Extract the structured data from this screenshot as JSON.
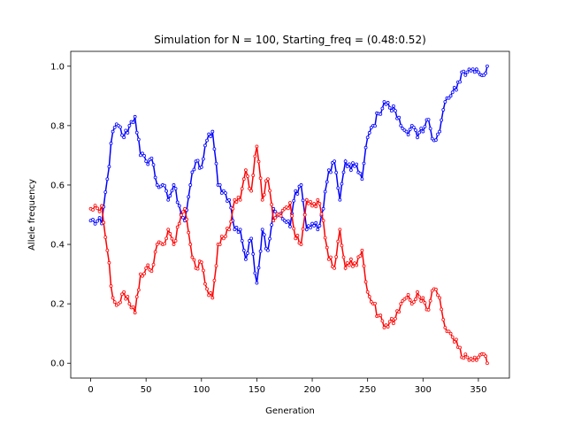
{
  "chart_data": {
    "type": "line",
    "title": "Simulation for N = 100, Starting_freq = (0.48:0.52)",
    "xlabel": "Generation",
    "ylabel": "Allele frequency",
    "xlim": [
      -18,
      378
    ],
    "ylim": [
      -0.05,
      1.05
    ],
    "x_ticks": [
      0,
      50,
      100,
      150,
      200,
      250,
      300,
      350
    ],
    "y_ticks": [
      0.0,
      0.2,
      0.4,
      0.6,
      0.8,
      1.0
    ],
    "grid": false,
    "legend": "none",
    "series": [
      {
        "color": "#0000ff",
        "x": [
          0,
          10,
          15,
          20,
          25,
          30,
          35,
          40,
          45,
          50,
          55,
          60,
          65,
          70,
          75,
          80,
          85,
          90,
          95,
          100,
          105,
          110,
          115,
          120,
          125,
          130,
          135,
          140,
          145,
          150,
          155,
          160,
          165,
          170,
          175,
          180,
          185,
          190,
          195,
          200,
          205,
          210,
          215,
          220,
          225,
          230,
          235,
          240,
          245,
          250,
          255,
          260,
          265,
          270,
          275,
          280,
          285,
          290,
          295,
          300,
          305,
          310,
          315,
          320,
          325,
          330,
          335,
          340,
          345,
          350,
          355,
          358
        ],
        "values": [
          0.48,
          0.47,
          0.62,
          0.78,
          0.8,
          0.76,
          0.8,
          0.83,
          0.7,
          0.68,
          0.69,
          0.6,
          0.6,
          0.55,
          0.6,
          0.53,
          0.48,
          0.6,
          0.68,
          0.66,
          0.75,
          0.78,
          0.6,
          0.58,
          0.55,
          0.45,
          0.45,
          0.35,
          0.42,
          0.27,
          0.45,
          0.38,
          0.52,
          0.5,
          0.48,
          0.46,
          0.58,
          0.6,
          0.45,
          0.47,
          0.45,
          0.52,
          0.65,
          0.68,
          0.55,
          0.68,
          0.65,
          0.67,
          0.62,
          0.76,
          0.8,
          0.84,
          0.88,
          0.86,
          0.85,
          0.8,
          0.78,
          0.8,
          0.76,
          0.78,
          0.82,
          0.75,
          0.78,
          0.88,
          0.9,
          0.92,
          0.98,
          0.98,
          0.99,
          0.98,
          0.97,
          1.0
        ]
      },
      {
        "color": "#ff0000",
        "x": [
          0,
          10,
          15,
          20,
          25,
          30,
          35,
          40,
          45,
          50,
          55,
          60,
          65,
          70,
          75,
          80,
          85,
          90,
          95,
          100,
          105,
          110,
          115,
          120,
          125,
          130,
          135,
          140,
          145,
          150,
          155,
          160,
          165,
          170,
          175,
          180,
          185,
          190,
          195,
          200,
          205,
          210,
          215,
          220,
          225,
          230,
          235,
          240,
          245,
          250,
          255,
          260,
          265,
          270,
          275,
          280,
          285,
          290,
          295,
          300,
          305,
          310,
          315,
          320,
          325,
          330,
          335,
          340,
          345,
          350,
          355,
          358
        ],
        "values": [
          0.52,
          0.53,
          0.38,
          0.22,
          0.2,
          0.24,
          0.2,
          0.17,
          0.3,
          0.32,
          0.31,
          0.4,
          0.4,
          0.45,
          0.4,
          0.47,
          0.52,
          0.4,
          0.32,
          0.34,
          0.25,
          0.22,
          0.4,
          0.42,
          0.45,
          0.55,
          0.55,
          0.65,
          0.58,
          0.73,
          0.55,
          0.62,
          0.48,
          0.5,
          0.52,
          0.54,
          0.42,
          0.4,
          0.55,
          0.53,
          0.55,
          0.48,
          0.35,
          0.32,
          0.45,
          0.32,
          0.35,
          0.33,
          0.38,
          0.24,
          0.2,
          0.16,
          0.12,
          0.14,
          0.15,
          0.2,
          0.22,
          0.2,
          0.24,
          0.22,
          0.18,
          0.25,
          0.22,
          0.12,
          0.1,
          0.08,
          0.02,
          0.02,
          0.01,
          0.02,
          0.03,
          0.0
        ]
      }
    ]
  }
}
